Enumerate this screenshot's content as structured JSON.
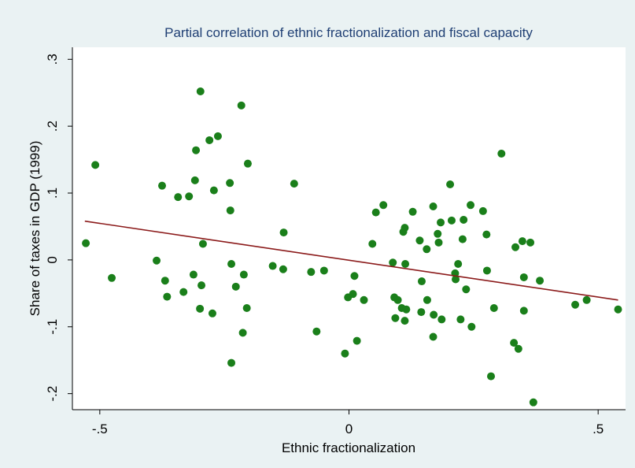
{
  "chart_data": {
    "type": "scatter",
    "title": "Partial correlation of ethnic fractionalization and fiscal capacity",
    "x_label": "Ethnic fractionalization",
    "y_label": "Share of taxes in GDP (1999)",
    "xlim": [
      -0.555,
      0.555
    ],
    "ylim": [
      -0.224,
      0.318
    ],
    "xticks": [
      {
        "value": -0.5,
        "label": "-.5"
      },
      0,
      {
        "value": 0.5,
        "label": ".5"
      }
    ],
    "yticks": [
      {
        "value": -0.2,
        "label": "-.2"
      },
      {
        "value": -0.1,
        "label": "-.1"
      },
      0,
      {
        "value": 0.1,
        "label": ".1"
      },
      {
        "value": 0.2,
        "label": ".2"
      },
      {
        "value": 0.3,
        "label": ".3"
      }
    ],
    "grid": false,
    "series": [
      {
        "mode": "markers",
        "color": "#1a7f1a",
        "x": [
          -0.528,
          -0.509,
          -0.476,
          -0.386,
          -0.375,
          -0.369,
          -0.365,
          -0.343,
          -0.332,
          -0.321,
          -0.312,
          -0.309,
          -0.307,
          -0.299,
          -0.298,
          -0.296,
          -0.293,
          -0.28,
          -0.274,
          -0.271,
          -0.263,
          -0.239,
          -0.238,
          -0.236,
          -0.236,
          -0.227,
          -0.216,
          -0.213,
          -0.211,
          -0.205,
          -0.203,
          -0.153,
          -0.132,
          -0.131,
          -0.11,
          -0.076,
          -0.065,
          -0.05,
          -0.008,
          -0.002,
          0.008,
          0.011,
          0.016,
          0.03,
          0.047,
          0.054,
          0.069,
          0.088,
          0.091,
          0.093,
          0.098,
          0.106,
          0.109,
          0.112,
          0.112,
          0.113,
          0.115,
          0.128,
          0.142,
          0.145,
          0.146,
          0.156,
          0.157,
          0.169,
          0.169,
          0.17,
          0.178,
          0.18,
          0.184,
          0.186,
          0.203,
          0.206,
          0.213,
          0.214,
          0.219,
          0.224,
          0.228,
          0.23,
          0.235,
          0.244,
          0.246,
          0.269,
          0.276,
          0.277,
          0.285,
          0.291,
          0.306,
          0.331,
          0.334,
          0.34,
          0.348,
          0.351,
          0.351,
          0.364,
          0.37,
          0.383,
          0.454,
          0.477,
          0.54
        ],
        "values": [
          0.025,
          0.142,
          -0.027,
          -0.001,
          0.111,
          -0.031,
          -0.055,
          0.094,
          -0.048,
          0.095,
          -0.022,
          0.119,
          0.164,
          -0.073,
          0.252,
          -0.038,
          0.024,
          0.179,
          -0.08,
          0.104,
          0.185,
          0.115,
          0.074,
          -0.006,
          -0.154,
          -0.04,
          0.231,
          -0.109,
          -0.022,
          -0.072,
          0.144,
          -0.009,
          -0.014,
          0.041,
          0.114,
          -0.018,
          -0.107,
          -0.016,
          -0.14,
          -0.056,
          -0.051,
          -0.024,
          -0.121,
          -0.06,
          0.024,
          0.071,
          0.082,
          -0.004,
          -0.056,
          -0.087,
          -0.06,
          -0.072,
          0.042,
          0.048,
          -0.091,
          -0.006,
          -0.074,
          0.072,
          0.029,
          -0.078,
          -0.032,
          0.016,
          -0.06,
          0.08,
          -0.115,
          -0.082,
          0.039,
          0.026,
          0.056,
          -0.089,
          0.113,
          0.059,
          -0.02,
          -0.029,
          -0.006,
          -0.089,
          0.031,
          0.06,
          -0.044,
          0.082,
          -0.1,
          0.073,
          0.038,
          -0.016,
          -0.174,
          -0.072,
          0.159,
          -0.124,
          0.019,
          -0.133,
          0.028,
          -0.026,
          -0.076,
          0.026,
          -0.213,
          -0.031,
          -0.067,
          -0.06,
          -0.074
        ]
      },
      {
        "mode": "line",
        "color": "#8b1a1a",
        "x": [
          -0.53,
          0.54
        ],
        "values": [
          0.058,
          -0.06
        ]
      }
    ]
  }
}
